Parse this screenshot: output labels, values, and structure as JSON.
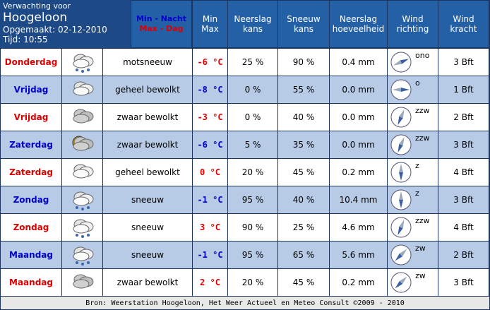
{
  "header": {
    "label": "Verwachting voor",
    "place": "Hoogeloon",
    "updated": "Opgemaakt: 02-12-2010",
    "time": "Tijd: 10:55",
    "legend": [
      {
        "text": "Min - Nacht",
        "color": "#0000cc"
      },
      {
        "text": "Max - Dag",
        "color": "#dd0000"
      }
    ]
  },
  "columns": [
    [
      "Min",
      "Max"
    ],
    [
      "Neerslag",
      "kans"
    ],
    [
      "Sneeuw",
      "kans"
    ],
    [
      "Neerslag",
      "hoeveelheid"
    ],
    [
      "Wind",
      "richting"
    ],
    [
      "Wind",
      "kracht"
    ]
  ],
  "rows": [
    [
      "Donderdag",
      "motsneeuw",
      "-6 °C",
      "25 %",
      "90 %",
      "0.4 mm",
      "ono",
      "3 Bft"
    ],
    [
      "Vrijdag",
      "geheel bewolkt",
      "-8 °C",
      "0 %",
      "55 %",
      "0.0 mm",
      "o",
      "1 Bft"
    ],
    [
      "Vrijdag",
      "zwaar bewolkt",
      "-3 °C",
      "0 %",
      "40 %",
      "0.0 mm",
      "zzw",
      "2 Bft"
    ],
    [
      "Zaterdag",
      "zwaar bewolkt",
      "-6 °C",
      "5 %",
      "35 %",
      "0.0 mm",
      "zzw",
      "3 Bft"
    ],
    [
      "Zaterdag",
      "geheel bewolkt",
      "0 °C",
      "20 %",
      "45 %",
      "0.2 mm",
      "z",
      "4 Bft"
    ],
    [
      "Zondag",
      "sneeuw",
      "-1 °C",
      "95 %",
      "40 %",
      "10.4 mm",
      "z",
      "3 Bft"
    ],
    [
      "Zondag",
      "sneeuw",
      "3 °C",
      "90 %",
      "25 %",
      "4.6 mm",
      "zzw",
      "4 Bft"
    ],
    [
      "Maandag",
      "sneeuw",
      "-1 °C",
      "95 %",
      "65 %",
      "5.6 mm",
      "zw",
      "2 Bft"
    ],
    [
      "Maandag",
      "zwaar bewolkt",
      "2 °C",
      "20 %",
      "45 %",
      "0.2 mm",
      "zw",
      "3 Bft"
    ]
  ],
  "footer": "Bron: Weerstation Hoogeloon, Het Weer Actueel en Meteo Consult ©2009 - 2010"
}
